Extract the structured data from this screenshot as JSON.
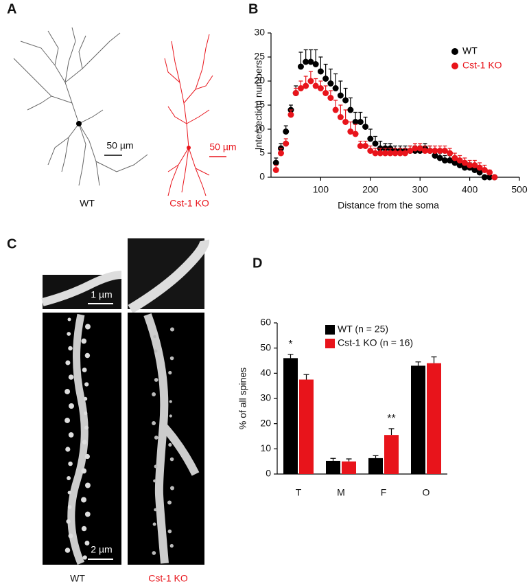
{
  "figure": {
    "panel_labels": [
      "A",
      "B",
      "C",
      "D"
    ],
    "panel_a": {
      "captions": [
        "WT",
        "Cst-1 KO"
      ],
      "scale_bars": [
        "50 µm",
        "50 µm"
      ]
    },
    "panel_c": {
      "captions": [
        "WT",
        "Cst-1 KO"
      ],
      "scale_bars": [
        "1 µm",
        "2 µm"
      ]
    }
  },
  "chart_data": [
    {
      "type": "scatter",
      "x_label": "Distance from the soma",
      "y_label": "Intersection numbers",
      "x": [
        10,
        20,
        30,
        40,
        50,
        60,
        70,
        80,
        90,
        100,
        110,
        120,
        130,
        140,
        150,
        160,
        170,
        180,
        190,
        200,
        210,
        220,
        230,
        240,
        250,
        260,
        270,
        280,
        290,
        300,
        310,
        320,
        330,
        340,
        350,
        360,
        370,
        380,
        390,
        400,
        410,
        420,
        430,
        440,
        450
      ],
      "series": [
        {
          "name": "WT",
          "color": "#000000",
          "values": [
            3,
            6,
            9.5,
            14,
            17.5,
            23,
            24,
            24,
            23.5,
            22,
            20.5,
            19.5,
            18.5,
            17,
            16,
            14,
            11.5,
            11.5,
            10.5,
            8,
            7,
            6,
            6,
            6,
            5.5,
            5.5,
            5.5,
            5.5,
            5.5,
            5.5,
            6,
            5.5,
            4.5,
            4,
            3.5,
            3.5,
            3,
            2.5,
            2,
            2,
            1.5,
            1,
            0,
            0,
            0
          ],
          "errors": [
            1,
            1,
            1.2,
            1,
            1.5,
            3,
            2.5,
            2.5,
            3,
            3,
            3,
            3,
            3,
            3,
            2.5,
            2.5,
            2,
            2,
            2,
            2,
            1.5,
            1.5,
            1,
            1,
            1,
            1,
            1,
            1,
            1,
            1,
            1,
            1,
            1,
            1,
            1,
            1,
            1,
            1,
            1,
            1,
            1,
            1,
            0,
            0,
            0
          ]
        },
        {
          "name": "Cst-1 KO",
          "color": "#e8141b",
          "values": [
            1.5,
            5,
            7,
            13,
            17.5,
            18.5,
            19,
            20,
            19,
            18.5,
            17.5,
            16.5,
            14,
            12.5,
            11.5,
            9.5,
            9,
            6.5,
            6.5,
            5.5,
            5,
            5,
            5,
            5,
            5,
            5,
            5,
            5.5,
            6,
            6,
            5.5,
            5.5,
            5.5,
            5.5,
            5.5,
            5,
            4,
            3.5,
            3,
            2.5,
            2.5,
            2,
            1.5,
            1,
            0
          ],
          "errors": [
            1,
            1,
            1,
            1,
            1,
            1.5,
            2,
            2,
            1.5,
            1.5,
            1.5,
            1.5,
            2,
            2.5,
            2.5,
            2,
            2,
            1,
            1,
            1,
            1,
            1,
            1,
            1,
            1,
            1,
            1,
            1,
            1,
            1,
            1,
            1,
            1,
            1,
            1,
            1,
            1,
            1,
            1,
            1,
            1,
            1,
            1,
            0.5,
            0
          ]
        }
      ],
      "xlim": [
        0,
        500
      ],
      "xticks": [
        100,
        200,
        300,
        400,
        500
      ],
      "ylim": [
        0,
        30
      ],
      "yticks": [
        0,
        5,
        10,
        15,
        20,
        25,
        30
      ],
      "legend": "upper right"
    },
    {
      "type": "bar",
      "y_label": "% of all spines",
      "categories": [
        "T",
        "M",
        "F",
        "O"
      ],
      "series": [
        {
          "name": "WT (n = 25)",
          "color": "#000000",
          "values": [
            46,
            5.2,
            6.3,
            43
          ],
          "errors": [
            1.5,
            1,
            1,
            1.5
          ]
        },
        {
          "name": "Cst-1 KO (n = 16)",
          "color": "#e8141b",
          "values": [
            37.5,
            5,
            15.5,
            44
          ],
          "errors": [
            2,
            1,
            2.5,
            2.5
          ]
        }
      ],
      "ylim": [
        0,
        60
      ],
      "yticks": [
        0,
        10,
        20,
        30,
        40,
        50,
        60
      ],
      "annotations": [
        "*",
        "**"
      ],
      "legend": "top"
    }
  ]
}
